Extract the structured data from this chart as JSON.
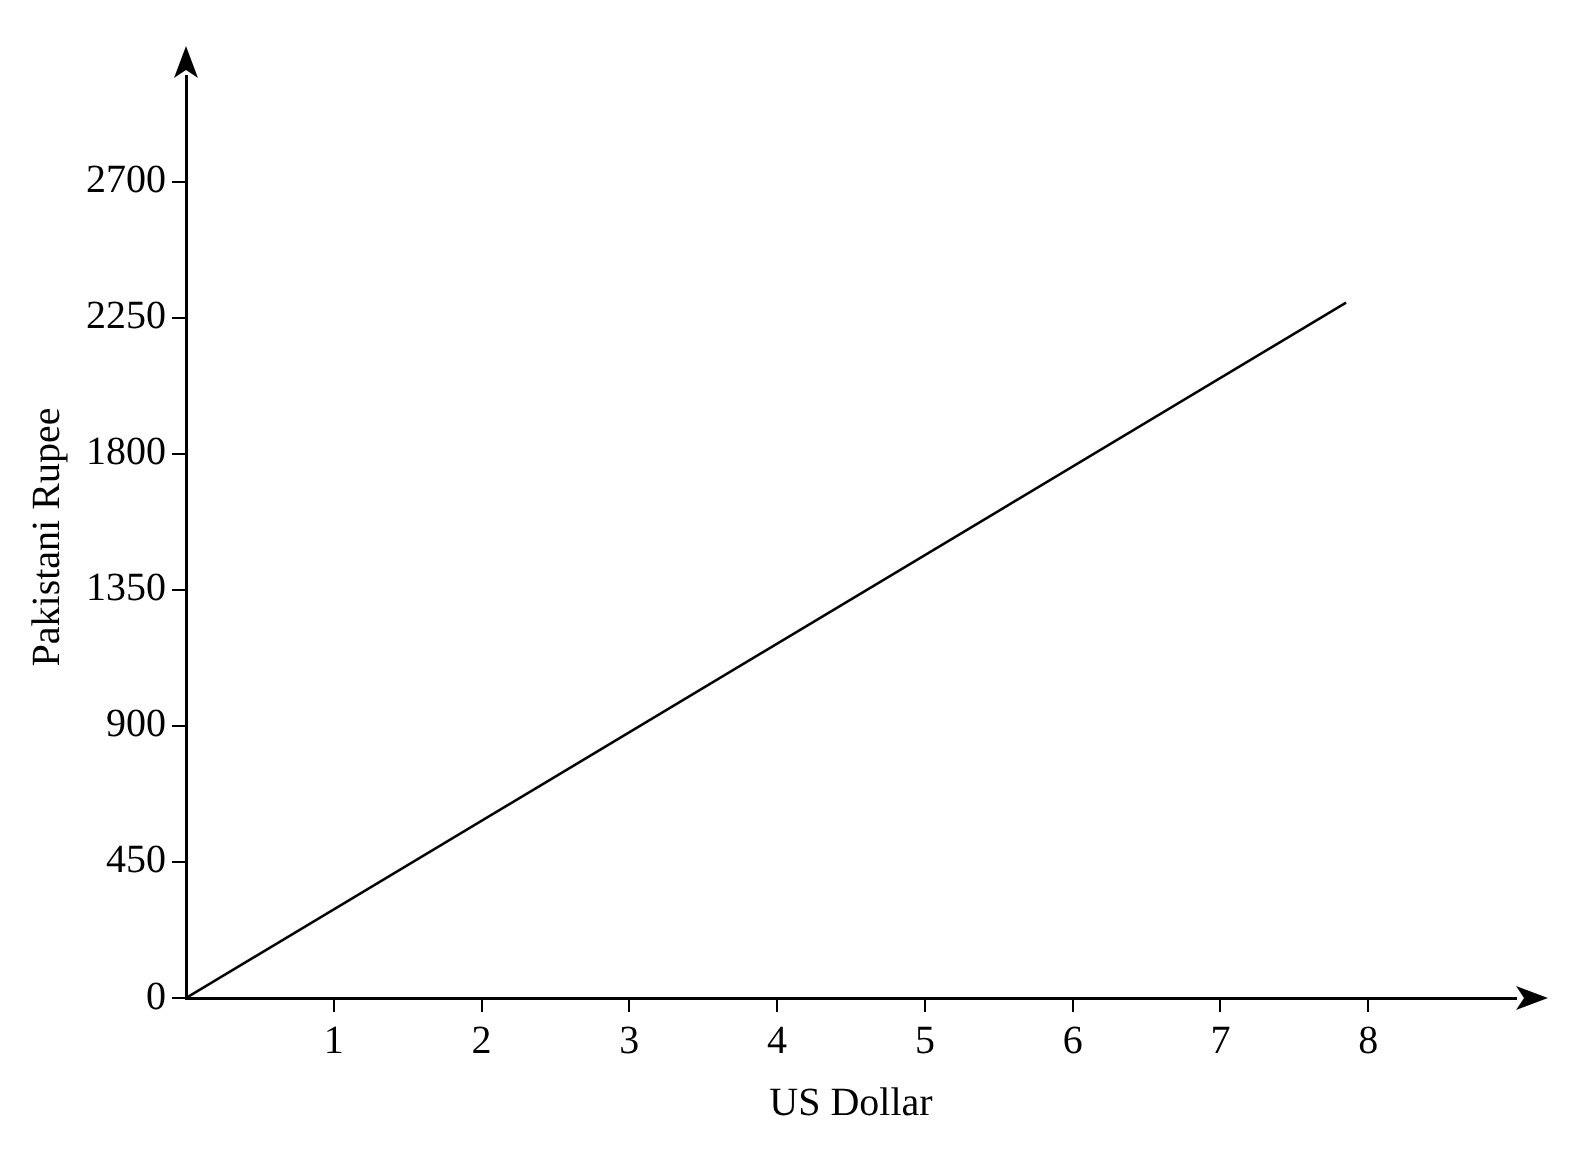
{
  "chart_data": {
    "type": "line",
    "xlabel": "US Dollar",
    "ylabel": "Pakistani Rupee",
    "series": [
      {
        "color": "#000000",
        "x": [
          0,
          7.85
        ],
        "values": [
          0,
          2300
        ]
      }
    ],
    "xlim": [
      0,
      9
    ],
    "ylim": [
      0,
      3050
    ],
    "xticks": [
      1,
      2,
      3,
      4,
      5,
      6,
      7,
      8
    ],
    "yticks": [
      0,
      450,
      900,
      1350,
      1800,
      2250,
      2700
    ],
    "grid": false,
    "legend": false,
    "marker": "none",
    "line_style": "solid"
  }
}
